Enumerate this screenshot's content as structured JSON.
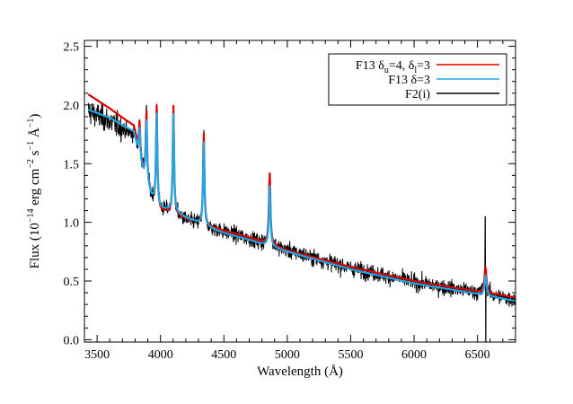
{
  "chart_data": {
    "type": "line",
    "xlabel": "Wavelength (Å)",
    "ylabel": {
      "pre": "Flux (10",
      "exp1": "−14",
      "mid1": " erg cm",
      "exp2": "−2",
      "mid2": " s",
      "exp3": "−1",
      "mid3": " Å",
      "exp4": "−1",
      "post": ")"
    },
    "xlim": [
      3400,
      6800
    ],
    "ylim": [
      -0.02,
      2.55
    ],
    "x_ticks": [
      3500,
      4000,
      4500,
      5000,
      5500,
      6000,
      6500
    ],
    "y_ticks": [
      0.0,
      0.5,
      1.0,
      1.5,
      2.0,
      2.5
    ],
    "x_minor_step": 100,
    "y_minor_step": 0.1,
    "grid": false,
    "legend_position": "top-right",
    "emission_lines": [
      {
        "x": 3798,
        "peak_red": 1.77,
        "peak_blue": 1.72
      },
      {
        "x": 3835,
        "peak_red": 1.86,
        "peak_blue": 1.8
      },
      {
        "x": 3889,
        "peak_red": 1.96,
        "peak_blue": 1.88
      },
      {
        "x": 3970,
        "peak_red": 1.99,
        "peak_blue": 1.92
      },
      {
        "x": 4102,
        "peak_red": 1.99,
        "peak_blue": 1.92
      },
      {
        "x": 4341,
        "peak_red": 1.78,
        "peak_blue": 1.7
      },
      {
        "x": 4861,
        "peak_red": 1.43,
        "peak_blue": 1.32
      },
      {
        "x": 6563,
        "peak_red": 0.62,
        "peak_blue": 0.55
      }
    ],
    "series": [
      {
        "name": "F13 δu=4, δl=3",
        "legend_parts": {
          "base": "F13 δ",
          "sub1": "u",
          "mid": "=4, δ",
          "sub2": "l",
          "post": "=3"
        },
        "color": "#dd0000",
        "continuum": [
          [
            3430,
            2.09
          ],
          [
            3600,
            1.97
          ],
          [
            3790,
            1.82
          ],
          [
            3850,
            1.5
          ],
          [
            3930,
            1.22
          ],
          [
            4000,
            1.1
          ],
          [
            4080,
            1.08
          ],
          [
            4130,
            1.06
          ],
          [
            4200,
            1.03
          ],
          [
            4300,
            1.0
          ],
          [
            4400,
            0.96
          ],
          [
            4500,
            0.93
          ],
          [
            4700,
            0.87
          ],
          [
            4850,
            0.82
          ],
          [
            5000,
            0.76
          ],
          [
            5500,
            0.62
          ],
          [
            6000,
            0.5
          ],
          [
            6500,
            0.41
          ],
          [
            6800,
            0.36
          ]
        ]
      },
      {
        "name": "F13 δ=3",
        "legend_parts": {
          "base": "F13 δ",
          "post": "=3"
        },
        "color": "#1ea7e3",
        "continuum": [
          [
            3430,
            1.96
          ],
          [
            3600,
            1.89
          ],
          [
            3790,
            1.77
          ],
          [
            3850,
            1.48
          ],
          [
            3930,
            1.22
          ],
          [
            4000,
            1.12
          ],
          [
            4080,
            1.1
          ],
          [
            4130,
            1.08
          ],
          [
            4200,
            1.04
          ],
          [
            4300,
            1.0
          ],
          [
            4400,
            0.95
          ],
          [
            4500,
            0.91
          ],
          [
            4700,
            0.85
          ],
          [
            4850,
            0.8
          ],
          [
            5000,
            0.75
          ],
          [
            5500,
            0.6
          ],
          [
            6000,
            0.48
          ],
          [
            6500,
            0.39
          ],
          [
            6800,
            0.33
          ]
        ]
      },
      {
        "name": "F2(i)",
        "legend_parts": {
          "base": "F2(i)"
        },
        "color": "#000000",
        "continuum": [
          [
            3430,
            1.95
          ],
          [
            3600,
            1.86
          ],
          [
            3790,
            1.74
          ],
          [
            3850,
            1.48
          ],
          [
            3930,
            1.22
          ],
          [
            4000,
            1.11
          ],
          [
            4080,
            1.09
          ],
          [
            4130,
            1.06
          ],
          [
            4200,
            1.02
          ],
          [
            4300,
            0.99
          ],
          [
            4400,
            0.95
          ],
          [
            4500,
            0.92
          ],
          [
            4700,
            0.86
          ],
          [
            4850,
            0.81
          ],
          [
            5000,
            0.76
          ],
          [
            5500,
            0.61
          ],
          [
            6000,
            0.49
          ],
          [
            6500,
            0.4
          ],
          [
            6800,
            0.34
          ]
        ],
        "noise_amplitude": 0.055
      }
    ]
  }
}
